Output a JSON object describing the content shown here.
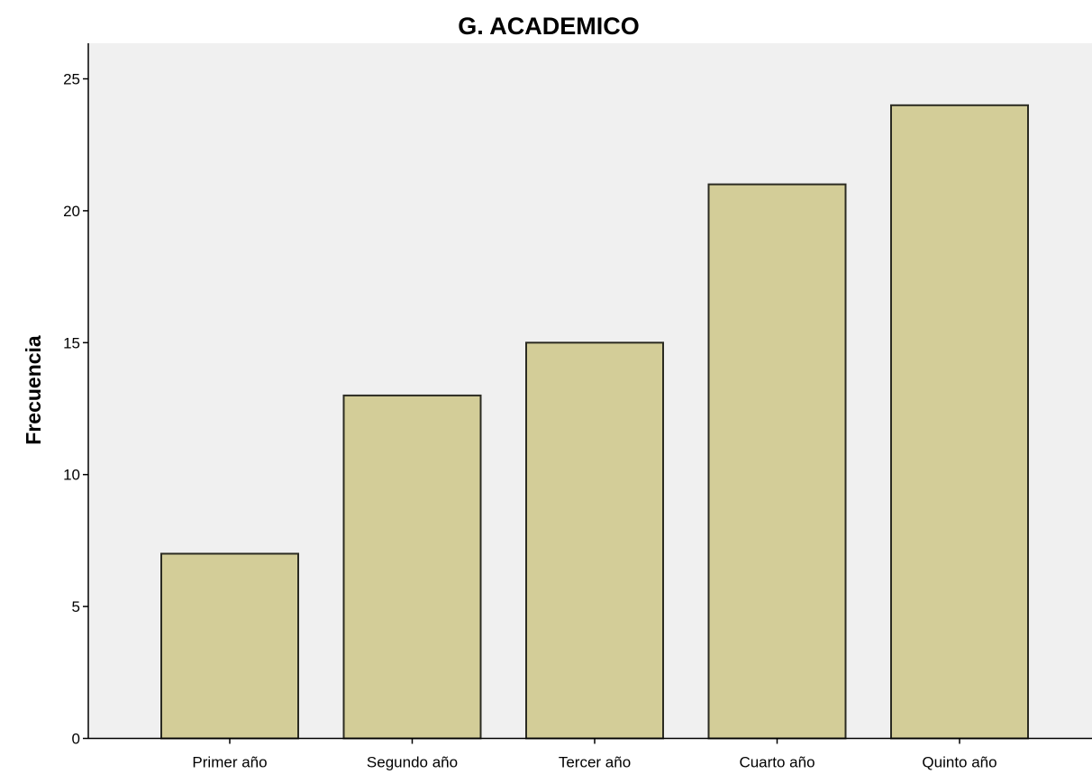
{
  "colors": {
    "plot_background": "#f0f0f0",
    "bar_fill": "#d3cd98",
    "bar_stroke": "#2b2b22",
    "axis": "#000000"
  },
  "chart_data": {
    "type": "bar",
    "title": "G. ACADEMICO",
    "xlabel": "",
    "ylabel": "Frecuencia",
    "categories": [
      "Primer año",
      "Segundo año",
      "Tercer año",
      "Cuarto año",
      "Quinto año"
    ],
    "values": [
      7,
      13,
      15,
      21,
      24
    ],
    "ylim": [
      0,
      25
    ],
    "yticks": [
      0,
      5,
      10,
      15,
      20,
      25
    ],
    "grid": false,
    "legend": "none"
  }
}
